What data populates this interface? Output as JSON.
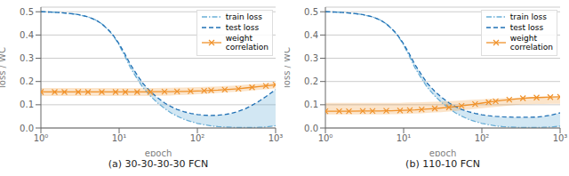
{
  "chart_data": [
    {
      "type": "line",
      "title": "(a) 30-30-30-30 FCN",
      "x_label": "epoch",
      "y_label": "loss / WC",
      "x": [
        1,
        1.5,
        2,
        3,
        4,
        5,
        6,
        7,
        8,
        9,
        10,
        12,
        14,
        17,
        20,
        25,
        30,
        38,
        46,
        55,
        67,
        82,
        100,
        122,
        150,
        183,
        224,
        274,
        335,
        410,
        500,
        612,
        750,
        1000
      ],
      "xlim": [
        1,
        1000
      ],
      "xticks": [
        {
          "value": 1,
          "label": "10⁰"
        },
        {
          "value": 10,
          "label": "10¹"
        },
        {
          "value": 100,
          "label": "10²"
        },
        {
          "value": 1000,
          "label": "10³"
        }
      ],
      "ylim": [
        0,
        0.52
      ],
      "yticks": [
        {
          "value": 0,
          "label": "0.0"
        },
        0.1,
        0.2,
        0.3,
        0.4,
        0.5
      ],
      "log": "x",
      "grid": true,
      "legend": "upper right",
      "series": [
        {
          "name": "train loss",
          "color": "#6aaed6",
          "line_style": "dashdot",
          "values": [
            0.5,
            0.498,
            0.495,
            0.488,
            0.478,
            0.465,
            0.448,
            0.428,
            0.406,
            0.382,
            0.357,
            0.305,
            0.258,
            0.212,
            0.175,
            0.138,
            0.112,
            0.084,
            0.065,
            0.051,
            0.038,
            0.028,
            0.02,
            0.014,
            0.009,
            0.006,
            0.004,
            0.003,
            0.002,
            0.002,
            0.002,
            0.003,
            0.004,
            0.01
          ]
        },
        {
          "name": "test loss",
          "color": "#2171b5",
          "line_style": "dashed",
          "values": [
            0.5,
            0.498,
            0.495,
            0.488,
            0.478,
            0.465,
            0.448,
            0.428,
            0.408,
            0.385,
            0.362,
            0.315,
            0.272,
            0.228,
            0.193,
            0.158,
            0.134,
            0.108,
            0.092,
            0.08,
            0.07,
            0.063,
            0.058,
            0.055,
            0.054,
            0.055,
            0.058,
            0.063,
            0.072,
            0.083,
            0.098,
            0.115,
            0.135,
            0.165
          ]
        },
        {
          "name": "weight\ncorrelation",
          "color": "#f0922b",
          "line_style": "solid",
          "marker": "x",
          "values": [
            0.155,
            0.155,
            0.155,
            0.155,
            0.155,
            0.155,
            0.155,
            0.155,
            0.155,
            0.155,
            0.155,
            0.155,
            0.155,
            0.155,
            0.155,
            0.155,
            0.156,
            0.156,
            0.156,
            0.157,
            0.157,
            0.158,
            0.159,
            0.16,
            0.162,
            0.163,
            0.165,
            0.167,
            0.169,
            0.172,
            0.175,
            0.178,
            0.181,
            0.186
          ],
          "upper": [
            0.172,
            0.172,
            0.172,
            0.172,
            0.172,
            0.172,
            0.172,
            0.172,
            0.172,
            0.172,
            0.172,
            0.172,
            0.172,
            0.172,
            0.172,
            0.172,
            0.172,
            0.173,
            0.173,
            0.174,
            0.174,
            0.175,
            0.176,
            0.177,
            0.178,
            0.179,
            0.181,
            0.182,
            0.184,
            0.186,
            0.188,
            0.19,
            0.192,
            0.196
          ],
          "lower": [
            0.138,
            0.138,
            0.138,
            0.138,
            0.138,
            0.138,
            0.138,
            0.138,
            0.138,
            0.138,
            0.138,
            0.138,
            0.138,
            0.138,
            0.138,
            0.138,
            0.139,
            0.139,
            0.14,
            0.141,
            0.142,
            0.143,
            0.145,
            0.147,
            0.149,
            0.151,
            0.153,
            0.155,
            0.157,
            0.159,
            0.162,
            0.164,
            0.166,
            0.17
          ]
        }
      ]
    },
    {
      "type": "line",
      "title": "(b) 110-10 FCN",
      "x_label": "epoch",
      "y_label": "loss / WC",
      "x": [
        1,
        1.5,
        2,
        3,
        4,
        5,
        6,
        7,
        8,
        9,
        10,
        12,
        14,
        17,
        20,
        25,
        30,
        38,
        46,
        55,
        67,
        82,
        100,
        122,
        150,
        183,
        224,
        274,
        335,
        410,
        500,
        612,
        750,
        1000
      ],
      "xlim": [
        1,
        1000
      ],
      "xticks": [
        {
          "value": 1,
          "label": "10⁰"
        },
        {
          "value": 10,
          "label": "10¹"
        },
        {
          "value": 100,
          "label": "10²"
        },
        {
          "value": 1000,
          "label": "10³"
        }
      ],
      "ylim": [
        0,
        0.52
      ],
      "yticks": [
        {
          "value": 0,
          "label": "0.0"
        },
        0.1,
        0.2,
        0.3,
        0.4,
        0.5
      ],
      "log": "x",
      "grid": true,
      "legend": "upper right",
      "series": [
        {
          "name": "train loss",
          "color": "#6aaed6",
          "line_style": "dashdot",
          "values": [
            0.5,
            0.498,
            0.495,
            0.488,
            0.478,
            0.465,
            0.448,
            0.428,
            0.406,
            0.382,
            0.357,
            0.305,
            0.258,
            0.212,
            0.175,
            0.138,
            0.112,
            0.084,
            0.065,
            0.051,
            0.038,
            0.028,
            0.02,
            0.014,
            0.009,
            0.006,
            0.004,
            0.003,
            0.002,
            0.002,
            0.002,
            0.003,
            0.004,
            0.008
          ]
        },
        {
          "name": "test loss",
          "color": "#2171b5",
          "line_style": "dashed",
          "values": [
            0.5,
            0.498,
            0.495,
            0.488,
            0.478,
            0.465,
            0.448,
            0.428,
            0.408,
            0.385,
            0.362,
            0.315,
            0.272,
            0.228,
            0.193,
            0.158,
            0.134,
            0.108,
            0.092,
            0.08,
            0.07,
            0.063,
            0.057,
            0.053,
            0.05,
            0.048,
            0.047,
            0.046,
            0.046,
            0.046,
            0.047,
            0.05,
            0.055,
            0.065
          ]
        },
        {
          "name": "weight\ncorrelation",
          "color": "#f0922b",
          "line_style": "solid",
          "marker": "x",
          "values": [
            0.072,
            0.072,
            0.072,
            0.073,
            0.073,
            0.073,
            0.074,
            0.074,
            0.075,
            0.075,
            0.076,
            0.077,
            0.078,
            0.08,
            0.082,
            0.084,
            0.086,
            0.089,
            0.092,
            0.095,
            0.099,
            0.103,
            0.107,
            0.111,
            0.115,
            0.119,
            0.122,
            0.125,
            0.128,
            0.13,
            0.131,
            0.132,
            0.133,
            0.134
          ],
          "upper": [
            0.108,
            0.108,
            0.108,
            0.108,
            0.108,
            0.108,
            0.108,
            0.108,
            0.108,
            0.108,
            0.109,
            0.11,
            0.11,
            0.111,
            0.112,
            0.113,
            0.114,
            0.116,
            0.117,
            0.119,
            0.12,
            0.122,
            0.123,
            0.125,
            0.126,
            0.128,
            0.129,
            0.13,
            0.131,
            0.132,
            0.133,
            0.133,
            0.134,
            0.135
          ],
          "lower": [
            0.058,
            0.058,
            0.058,
            0.058,
            0.058,
            0.058,
            0.058,
            0.059,
            0.059,
            0.06,
            0.06,
            0.061,
            0.062,
            0.063,
            0.065,
            0.067,
            0.068,
            0.071,
            0.073,
            0.076,
            0.079,
            0.082,
            0.085,
            0.088,
            0.091,
            0.094,
            0.097,
            0.099,
            0.101,
            0.102,
            0.103,
            0.103,
            0.104,
            0.104
          ]
        }
      ]
    }
  ]
}
